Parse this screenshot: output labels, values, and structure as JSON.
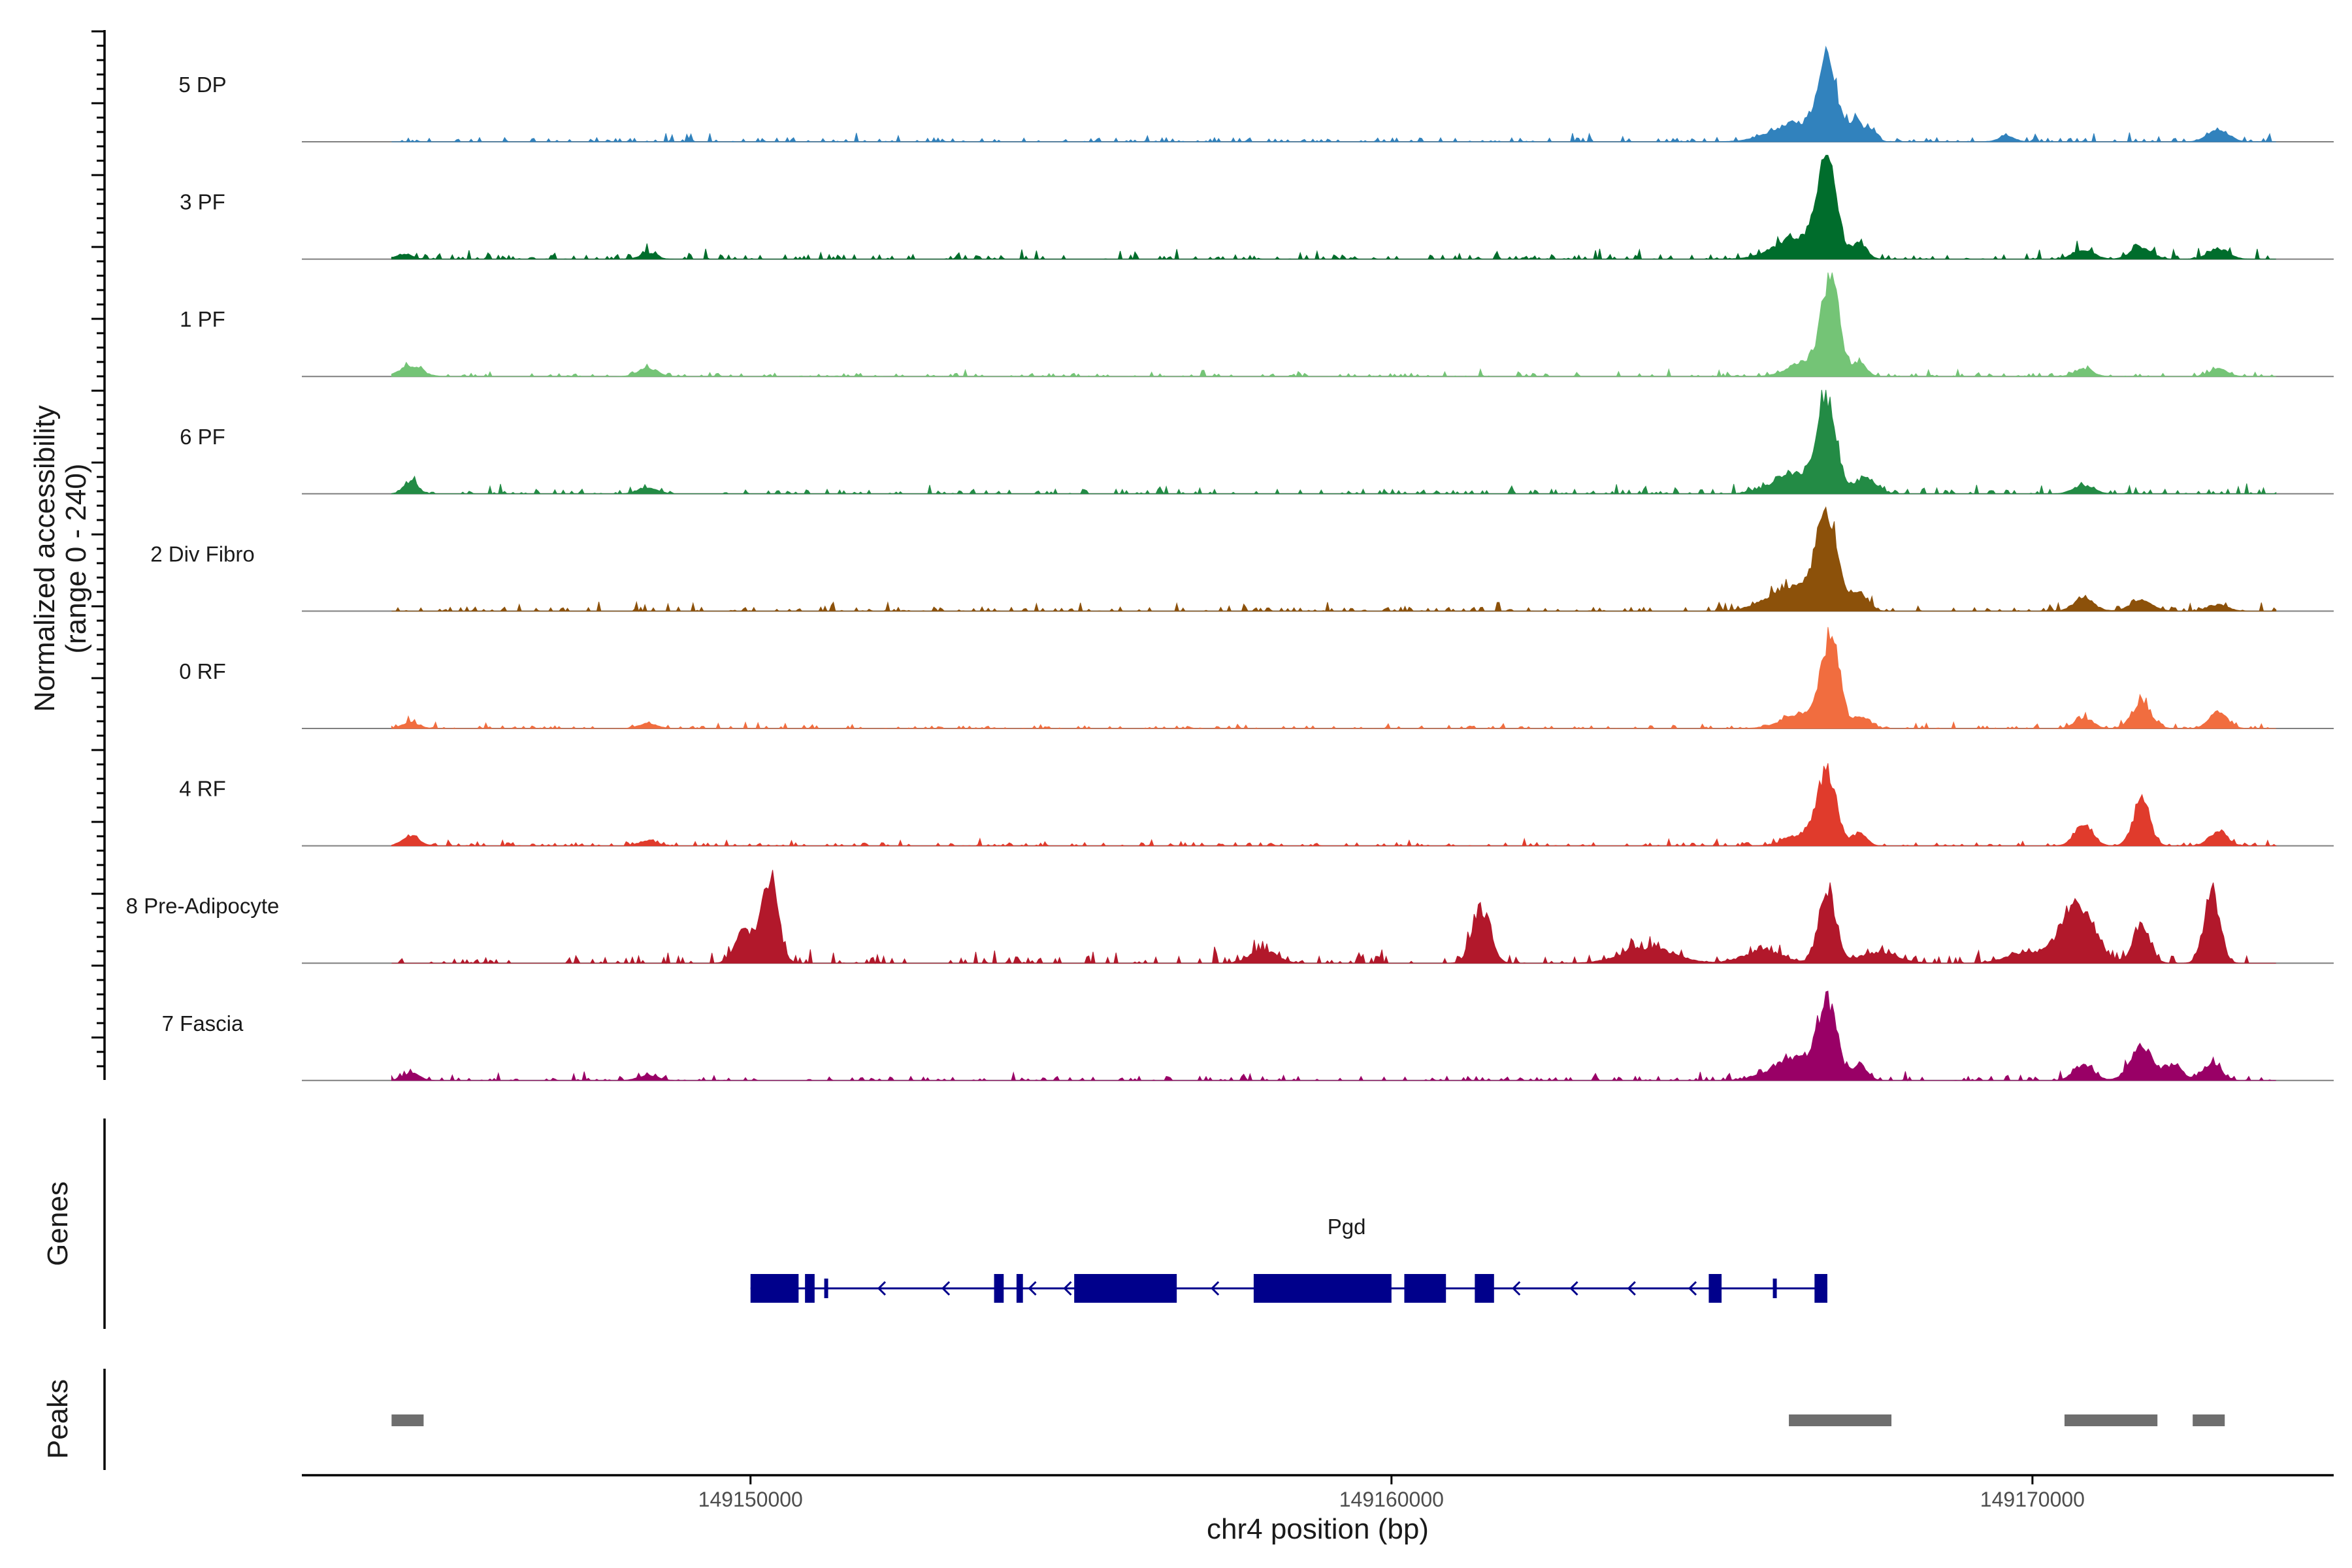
{
  "chart_data": {
    "type": "area",
    "title": "",
    "ylabel_line1": "Normalized accessibility",
    "ylabel_line2": "(range 0 - 240)",
    "xlabel": "chr4 position (bp)",
    "y_range": [
      0,
      240
    ],
    "x_range": [
      149143000,
      149174700
    ],
    "data_range": [
      149144400,
      149173800
    ],
    "x_ticks": [
      149150000,
      149160000,
      149170000
    ],
    "x_tick_labels": [
      "149150000",
      "149160000",
      "149170000"
    ],
    "tracks_section_label": "",
    "genes_section_label": "Genes",
    "peaks_section_label": "Peaks",
    "series": [
      {
        "name": "5 DP",
        "color": "#3182BD",
        "peaks": [
          [
            149166800,
            0.78,
            140
          ],
          [
            149166350,
            0.18,
            400
          ],
          [
            149167250,
            0.2,
            100
          ],
          [
            149167500,
            0.12,
            80
          ],
          [
            149169600,
            0.06,
            120
          ],
          [
            149172900,
            0.12,
            160
          ]
        ],
        "noise": 0.045
      },
      {
        "name": "3 PF",
        "color": "#006D2C",
        "peaks": [
          [
            149166800,
            0.85,
            140
          ],
          [
            149166400,
            0.22,
            380
          ],
          [
            149167300,
            0.15,
            110
          ],
          [
            149170800,
            0.09,
            160
          ],
          [
            149171700,
            0.12,
            160
          ],
          [
            149172900,
            0.1,
            160
          ],
          [
            149148400,
            0.06,
            120
          ],
          [
            149144600,
            0.05,
            120
          ]
        ],
        "noise": 0.05
      },
      {
        "name": "1 PF",
        "color": "#74C476",
        "peaks": [
          [
            149166850,
            0.88,
            140
          ],
          [
            149166450,
            0.14,
            260
          ],
          [
            149167300,
            0.13,
            110
          ],
          [
            149170800,
            0.07,
            140
          ],
          [
            149172900,
            0.07,
            140
          ],
          [
            149144700,
            0.1,
            170
          ],
          [
            149148400,
            0.08,
            150
          ]
        ],
        "noise": 0.035
      },
      {
        "name": "6 PF",
        "color": "#238B45",
        "peaks": [
          [
            149166800,
            0.88,
            140
          ],
          [
            149166350,
            0.2,
            360
          ],
          [
            149167400,
            0.16,
            160
          ],
          [
            149170800,
            0.08,
            160
          ],
          [
            149144700,
            0.12,
            110
          ],
          [
            149148400,
            0.06,
            150
          ]
        ],
        "noise": 0.05
      },
      {
        "name": "2 Div Fibro",
        "color": "#8C510A",
        "peaks": [
          [
            149166800,
            0.86,
            160
          ],
          [
            149166300,
            0.24,
            400
          ],
          [
            149167300,
            0.17,
            130
          ],
          [
            149170800,
            0.12,
            160
          ],
          [
            149171700,
            0.1,
            180
          ],
          [
            149172900,
            0.06,
            150
          ]
        ],
        "noise": 0.045
      },
      {
        "name": "0 RF",
        "color": "#F16D3F",
        "peaks": [
          [
            149166850,
            0.86,
            140
          ],
          [
            149166400,
            0.14,
            300
          ],
          [
            149167350,
            0.11,
            120
          ],
          [
            149170800,
            0.1,
            140
          ],
          [
            149171700,
            0.25,
            150
          ],
          [
            149172900,
            0.16,
            140
          ],
          [
            149144700,
            0.06,
            130
          ],
          [
            149148400,
            0.05,
            140
          ]
        ],
        "noise": 0.03
      },
      {
        "name": "4 RF",
        "color": "#E03B2C",
        "peaks": [
          [
            149166800,
            0.68,
            140
          ],
          [
            149166450,
            0.12,
            260
          ],
          [
            149167300,
            0.12,
            110
          ],
          [
            149170800,
            0.22,
            140
          ],
          [
            149171700,
            0.42,
            130
          ],
          [
            149172900,
            0.14,
            140
          ],
          [
            149144700,
            0.1,
            130
          ],
          [
            149148400,
            0.05,
            140
          ]
        ],
        "noise": 0.035
      },
      {
        "name": "8 Pre-Adipocyte",
        "color": "#B2182B",
        "peaks": [
          [
            149150300,
            0.8,
            130
          ],
          [
            149149900,
            0.3,
            140
          ],
          [
            149161400,
            0.52,
            140
          ],
          [
            149166800,
            0.72,
            130
          ],
          [
            149170700,
            0.55,
            260
          ],
          [
            149171700,
            0.38,
            130
          ],
          [
            149172800,
            0.7,
            120
          ],
          [
            149158000,
            0.13,
            200
          ],
          [
            149164000,
            0.15,
            400
          ],
          [
            149165800,
            0.12,
            300
          ],
          [
            149167600,
            0.1,
            300
          ],
          [
            149169900,
            0.1,
            300
          ]
        ],
        "noise": 0.08
      },
      {
        "name": "7 Fascia",
        "color": "#990066",
        "peaks": [
          [
            149166800,
            0.68,
            140
          ],
          [
            149166350,
            0.22,
            380
          ],
          [
            149167300,
            0.13,
            120
          ],
          [
            149170800,
            0.14,
            160
          ],
          [
            149171700,
            0.32,
            170
          ],
          [
            149172200,
            0.15,
            140
          ],
          [
            149172800,
            0.16,
            140
          ],
          [
            149144700,
            0.07,
            130
          ],
          [
            149148400,
            0.05,
            150
          ]
        ],
        "noise": 0.045
      }
    ],
    "gene": {
      "name": "Pgd",
      "strand": "-",
      "start": 149150000,
      "end": 149166800,
      "color": "#00008B",
      "exons": [
        [
          149150000,
          149150750,
          "thick"
        ],
        [
          149150850,
          149151000,
          "thick"
        ],
        [
          149151150,
          149151200,
          "thin"
        ],
        [
          149153800,
          149153950,
          "thick"
        ],
        [
          149154150,
          149154250,
          "thick"
        ],
        [
          149155050,
          149156650,
          "thick"
        ],
        [
          149157850,
          149160000,
          "thick"
        ],
        [
          149160200,
          149160850,
          "thick"
        ],
        [
          149161300,
          149161600,
          "thick"
        ],
        [
          149164950,
          149165150,
          "thick"
        ],
        [
          149165950,
          149166000,
          "thin"
        ],
        [
          149166600,
          149166800,
          "thick"
        ]
      ],
      "arrows": [
        149152000,
        149153000,
        149154350,
        149154900,
        149157200,
        149161900,
        149162800,
        149163700,
        149164650
      ]
    },
    "peaks_track": [
      [
        149144400,
        149144900
      ],
      [
        149166200,
        149167800
      ],
      [
        149170500,
        149171950
      ],
      [
        149172500,
        149173000
      ]
    ]
  }
}
